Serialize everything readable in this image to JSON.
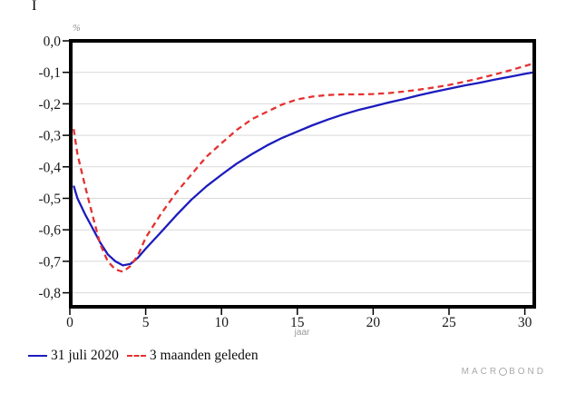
{
  "misc": {
    "cursor_glyph": "I"
  },
  "brand": {
    "prefix": "MACR",
    "suffix": "BOND"
  },
  "chart_data": {
    "type": "line",
    "title": "",
    "xlabel": "jaar",
    "ylabel": "%",
    "xlim": [
      0,
      30.6
    ],
    "ylim": [
      -0.845,
      0
    ],
    "grid": true,
    "grid_color": "#d9d9d9",
    "frame_color": "#000000",
    "tick_label_color": "#1a1a1a",
    "unit_label_color": "#8f8f8f",
    "legend_position": "bottom-left",
    "xticks": [
      0,
      5,
      10,
      15,
      20,
      25,
      30
    ],
    "yticks": [
      0,
      -0.1,
      -0.2,
      -0.3,
      -0.4,
      -0.5,
      -0.6,
      -0.7,
      -0.8
    ],
    "ytick_labels": [
      "0,0",
      "-0,1",
      "-0,2",
      "-0,3",
      "-0,4",
      "-0,5",
      "-0,6",
      "-0,7",
      "-0,8"
    ],
    "series": [
      {
        "name": "31 juli 2020",
        "color": "#1c1cbe",
        "style": "solid",
        "x": [
          0.25,
          0.5,
          1,
          1.5,
          2,
          2.5,
          3,
          3.5,
          4,
          4.5,
          5,
          6,
          7,
          8,
          9,
          10,
          11,
          12,
          13,
          14,
          15,
          16,
          17,
          18,
          19,
          20,
          21,
          22,
          23,
          24,
          25,
          26,
          27,
          28,
          29,
          30
        ],
        "y": [
          -0.46,
          -0.5,
          -0.55,
          -0.595,
          -0.64,
          -0.678,
          -0.7,
          -0.713,
          -0.708,
          -0.688,
          -0.66,
          -0.608,
          -0.555,
          -0.505,
          -0.462,
          -0.425,
          -0.39,
          -0.36,
          -0.332,
          -0.308,
          -0.288,
          -0.268,
          -0.25,
          -0.234,
          -0.22,
          -0.208,
          -0.196,
          -0.185,
          -0.173,
          -0.162,
          -0.152,
          -0.142,
          -0.133,
          -0.123,
          -0.114,
          -0.105
        ]
      },
      {
        "name": "3 maanden geleden",
        "color": "#e4312f",
        "style": "dashed",
        "x": [
          0.25,
          0.5,
          1,
          1.5,
          2,
          2.5,
          3,
          3.5,
          4,
          4.5,
          5,
          6,
          7,
          8,
          9,
          10,
          11,
          12,
          13,
          14,
          15,
          16,
          17,
          18,
          19,
          20,
          21,
          22,
          23,
          24,
          25,
          26,
          27,
          28,
          29,
          30
        ],
        "y": [
          -0.28,
          -0.36,
          -0.46,
          -0.555,
          -0.645,
          -0.7,
          -0.726,
          -0.733,
          -0.715,
          -0.68,
          -0.625,
          -0.55,
          -0.483,
          -0.425,
          -0.368,
          -0.325,
          -0.283,
          -0.249,
          -0.225,
          -0.202,
          -0.186,
          -0.177,
          -0.172,
          -0.17,
          -0.17,
          -0.169,
          -0.166,
          -0.161,
          -0.155,
          -0.148,
          -0.14,
          -0.13,
          -0.119,
          -0.107,
          -0.094,
          -0.08
        ]
      }
    ]
  }
}
